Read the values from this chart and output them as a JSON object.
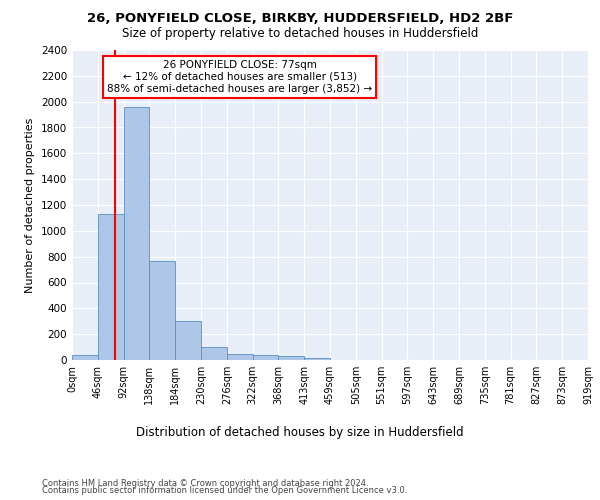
{
  "title_line1": "26, PONYFIELD CLOSE, BIRKBY, HUDDERSFIELD, HD2 2BF",
  "title_line2": "Size of property relative to detached houses in Huddersfield",
  "xlabel": "Distribution of detached houses by size in Huddersfield",
  "ylabel": "Number of detached properties",
  "bin_labels": [
    "0sqm",
    "46sqm",
    "92sqm",
    "138sqm",
    "184sqm",
    "230sqm",
    "276sqm",
    "322sqm",
    "368sqm",
    "413sqm",
    "459sqm",
    "505sqm",
    "551sqm",
    "597sqm",
    "643sqm",
    "689sqm",
    "735sqm",
    "781sqm",
    "827sqm",
    "873sqm",
    "919sqm"
  ],
  "bar_heights": [
    35,
    1130,
    1960,
    770,
    300,
    100,
    48,
    40,
    28,
    18,
    0,
    0,
    0,
    0,
    0,
    0,
    0,
    0,
    0,
    0
  ],
  "bar_color": "#aec6e8",
  "bar_edge_color": "#5a8fc0",
  "annotation_text": "26 PONYFIELD CLOSE: 77sqm\n← 12% of detached houses are smaller (513)\n88% of semi-detached houses are larger (3,852) →",
  "annotation_box_color": "white",
  "annotation_box_edge_color": "red",
  "vline_color": "red",
  "vline_x": 1.67,
  "ylim": [
    0,
    2400
  ],
  "yticks": [
    0,
    200,
    400,
    600,
    800,
    1000,
    1200,
    1400,
    1600,
    1800,
    2000,
    2200,
    2400
  ],
  "background_color": "#e8eef8",
  "footer_line1": "Contains HM Land Registry data © Crown copyright and database right 2024.",
  "footer_line2": "Contains public sector information licensed under the Open Government Licence v3.0."
}
